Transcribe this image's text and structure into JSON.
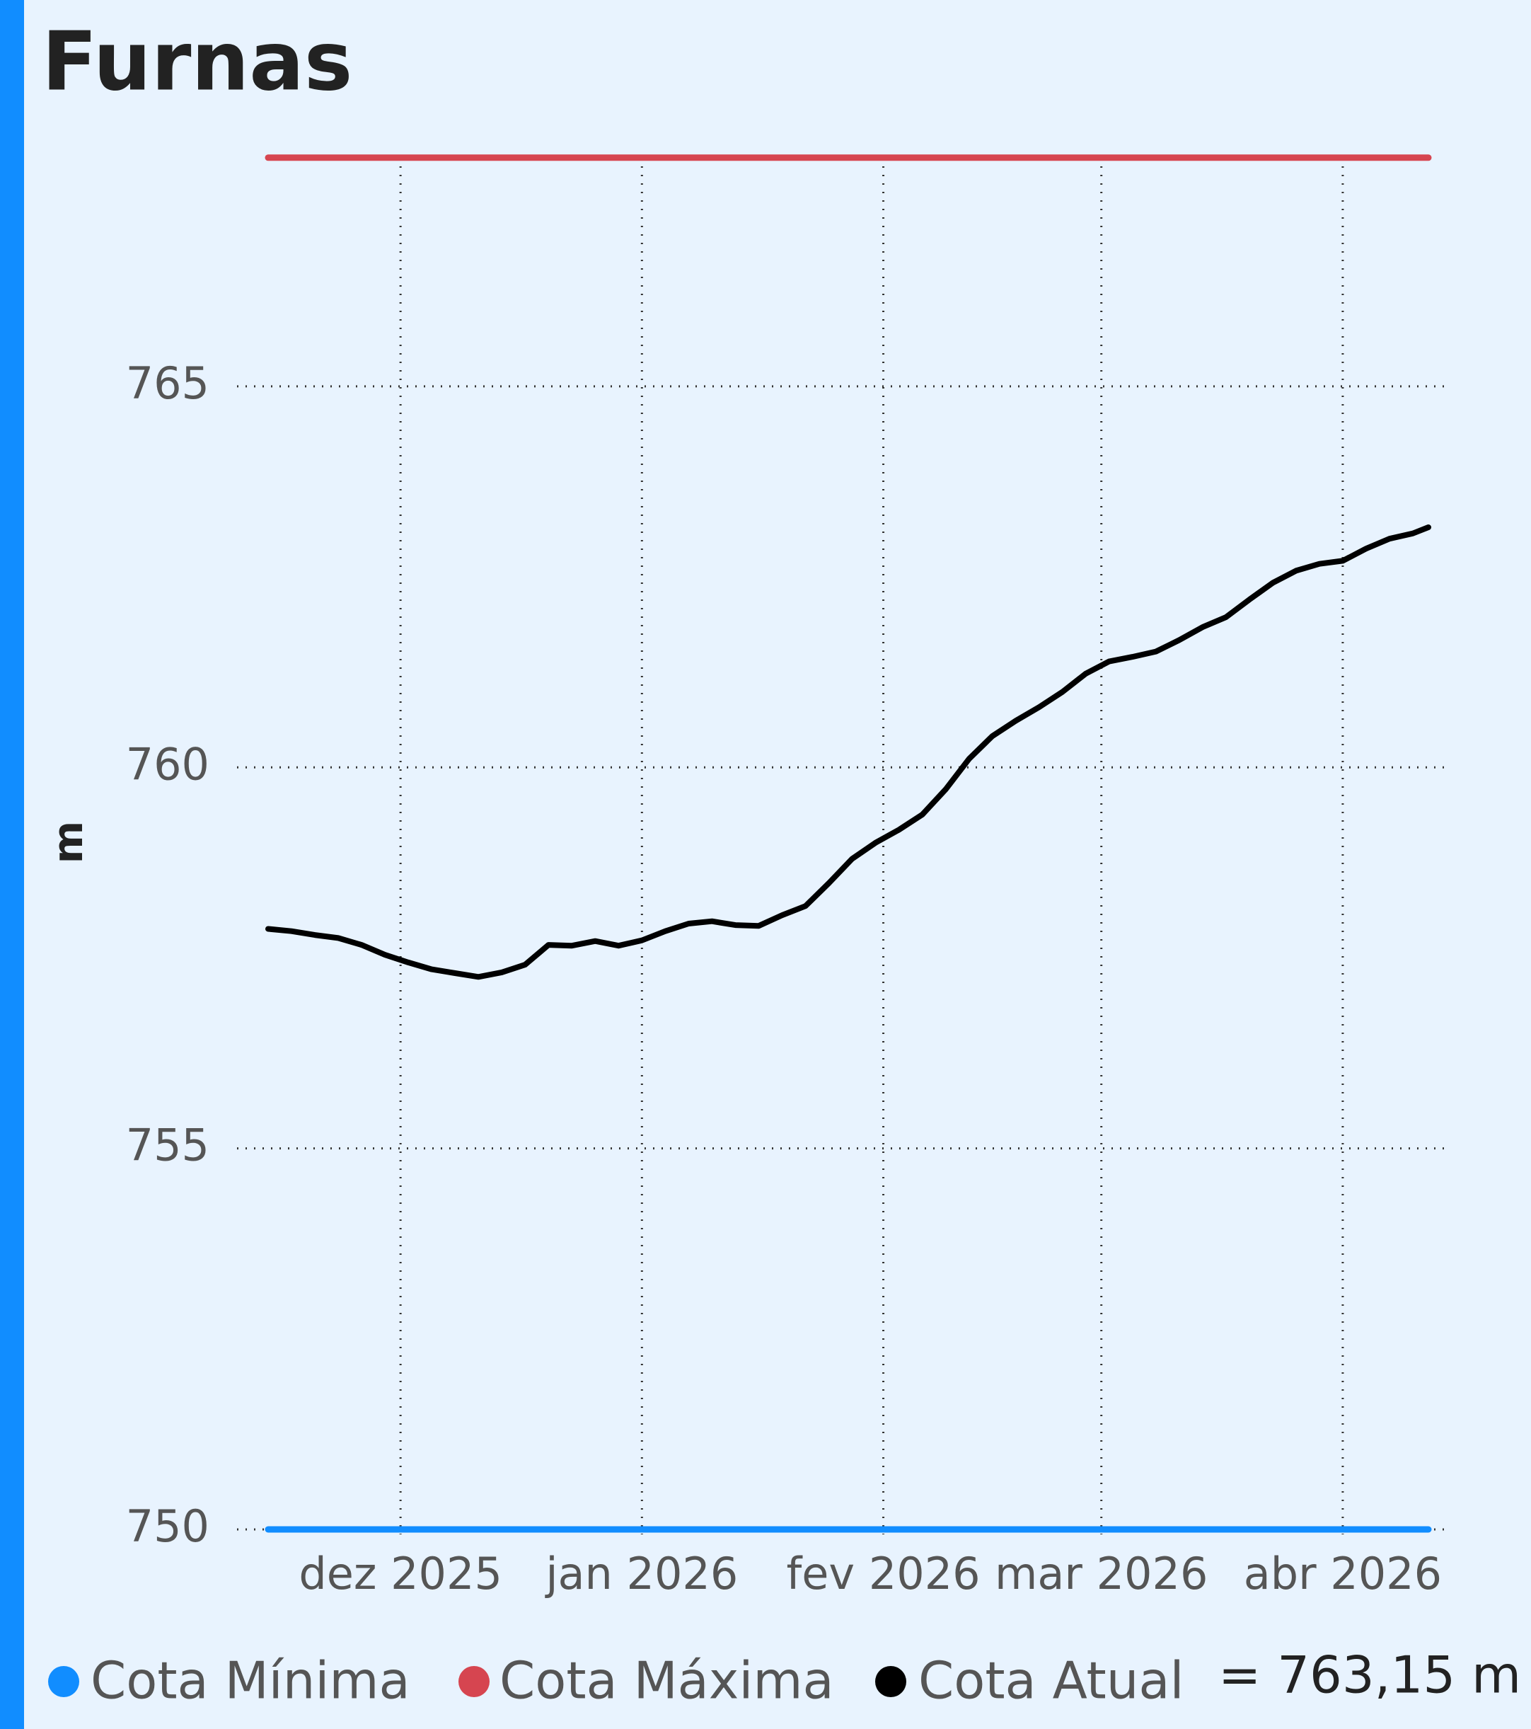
{
  "chart_data": {
    "type": "line",
    "title": "Furnas",
    "ylabel": "m",
    "xticks": [
      {
        "value": 18,
        "label": "dez 2025"
      },
      {
        "value": 49,
        "label": "jan 2026"
      },
      {
        "value": 80,
        "label": "fev 2026"
      },
      {
        "value": 108,
        "label": "mar 2026"
      },
      {
        "value": 139,
        "label": "abr 2026"
      }
    ],
    "xlim": [
      -3,
      152
    ],
    "ylim": [
      750,
      768
    ],
    "yticks": [
      750,
      755,
      760,
      765
    ],
    "grid": true,
    "series": [
      {
        "name": "Cota Mínima",
        "color": "#118dff",
        "x": [
          1,
          150
        ],
        "values": [
          750,
          750
        ]
      },
      {
        "name": "Cota Máxima",
        "color": "#d64550",
        "x": [
          1,
          150
        ],
        "values": [
          768,
          768
        ]
      },
      {
        "name": "Cota Atual",
        "color": "#000000",
        "x": [
          1,
          4,
          7,
          10,
          13,
          16,
          19,
          22,
          25,
          28,
          31,
          34,
          37,
          40,
          43,
          46,
          49,
          52,
          55,
          58,
          61,
          64,
          67,
          70,
          73,
          76,
          79,
          82,
          85,
          88,
          91,
          94,
          97,
          100,
          103,
          106,
          109,
          112,
          115,
          118,
          121,
          124,
          127,
          130,
          133,
          136,
          139,
          142,
          145,
          148,
          150
        ],
        "values": [
          757.88,
          757.85,
          757.8,
          757.76,
          757.67,
          757.54,
          757.44,
          757.35,
          757.3,
          757.25,
          757.31,
          757.41,
          757.67,
          757.66,
          757.72,
          757.66,
          757.73,
          757.85,
          757.95,
          757.98,
          757.93,
          757.92,
          758.06,
          758.18,
          758.48,
          758.8,
          759.01,
          759.18,
          759.38,
          759.71,
          760.11,
          760.41,
          760.61,
          760.79,
          760.99,
          761.23,
          761.39,
          761.45,
          761.52,
          761.67,
          761.84,
          761.97,
          762.2,
          762.42,
          762.58,
          762.67,
          762.71,
          762.87,
          763.0,
          763.07,
          763.15
        ],
        "legend_value_label": "= 763,15 m"
      }
    ]
  }
}
